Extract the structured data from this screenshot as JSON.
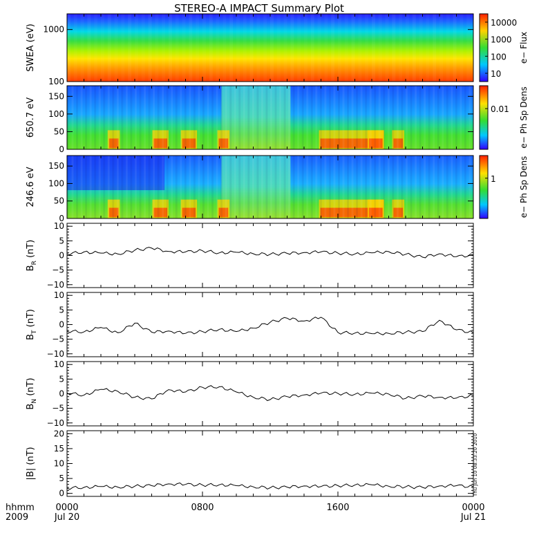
{
  "title": "STEREO-A IMPACT Summary Plot",
  "stamp": "Thu Jun 10 08:33:20 2010",
  "x_axis": {
    "row1_left": "hhmm",
    "row2_left": "2009",
    "tick_top": [
      "0000",
      "0800",
      "1600",
      "0000"
    ],
    "tick_bottom": [
      "Jul 20",
      "",
      "",
      "Jul 21"
    ]
  },
  "chart_data": [
    {
      "type": "heatmap",
      "ylabel": "SWEA (eV)",
      "yscale": "log",
      "yticks": [
        "1000",
        "100"
      ],
      "ylim": [
        100,
        2000
      ],
      "colorbar": {
        "label": "e− Flux",
        "ticks": [
          "10000",
          "1000",
          "100",
          "10"
        ],
        "scale": "log"
      }
    },
    {
      "type": "heatmap",
      "ylabel": "650.7 eV",
      "yticks": [
        "150",
        "100",
        "50",
        "0"
      ],
      "ylim": [
        0,
        180
      ],
      "colorbar": {
        "label": "e− Ph Sp Dens",
        "ticks": [
          "0.01"
        ],
        "scale": "log"
      }
    },
    {
      "type": "heatmap",
      "ylabel": "246.6 eV",
      "yticks": [
        "150",
        "100",
        "50",
        "0"
      ],
      "ylim": [
        0,
        180
      ],
      "colorbar": {
        "label": "e− Ph Sp Dens",
        "ticks": [
          "1"
        ],
        "scale": "log"
      }
    },
    {
      "type": "line",
      "ylabel": "B",
      "ylabel_sub": "R",
      "ylabel_unit": " (nT)",
      "yticks": [
        "10",
        "5",
        "0",
        "−5",
        "−10"
      ],
      "ylim": [
        -11,
        11
      ],
      "x": [
        0,
        1,
        2,
        3,
        4,
        5,
        6,
        7,
        8,
        9,
        10,
        11,
        12,
        13,
        14,
        15,
        16,
        17,
        18,
        19,
        20,
        21,
        22,
        23,
        24
      ],
      "values": [
        0.6,
        1.2,
        0.8,
        0.5,
        1.8,
        2.5,
        1.4,
        1.2,
        1.6,
        0.9,
        1.1,
        0.6,
        0.4,
        0.7,
        1.0,
        1.2,
        0.8,
        0.5,
        0.9,
        1.3,
        0.4,
        -0.6,
        0.6,
        -0.4,
        0.1
      ]
    },
    {
      "type": "line",
      "ylabel": "B",
      "ylabel_sub": "T",
      "ylabel_unit": " (nT)",
      "yticks": [
        "10",
        "5",
        "0",
        "−5",
        "−10"
      ],
      "ylim": [
        -11,
        11
      ],
      "x": [
        0,
        1,
        2,
        3,
        4,
        5,
        6,
        7,
        8,
        9,
        10,
        11,
        12,
        13,
        14,
        15,
        16,
        17,
        18,
        19,
        20,
        21,
        22,
        23,
        24
      ],
      "values": [
        -2.2,
        -2.5,
        -1.0,
        -2.8,
        0.5,
        -2.6,
        -2.2,
        -3.0,
        -2.4,
        -1.6,
        -2.4,
        -1.2,
        0.8,
        2.2,
        1.2,
        2.5,
        -2.7,
        -2.9,
        -3.1,
        -3.0,
        -2.6,
        -2.4,
        1.5,
        -1.8,
        -2.8
      ]
    },
    {
      "type": "line",
      "ylabel": "B",
      "ylabel_sub": "N",
      "ylabel_unit": " (nT)",
      "yticks": [
        "10",
        "5",
        "0",
        "−5",
        "−10"
      ],
      "ylim": [
        -11,
        11
      ],
      "x": [
        0,
        1,
        2,
        3,
        4,
        5,
        6,
        7,
        8,
        9,
        10,
        11,
        12,
        13,
        14,
        15,
        16,
        17,
        18,
        19,
        20,
        21,
        22,
        23,
        24
      ],
      "values": [
        0.3,
        -0.5,
        1.5,
        0.8,
        -1.2,
        -1.8,
        1.4,
        0.6,
        2.2,
        2.4,
        0.6,
        -1.2,
        -2.0,
        -1.0,
        -0.4,
        0.2,
        0.1,
        -0.2,
        0.2,
        -0.1,
        -1.6,
        -0.8,
        -1.2,
        -1.5,
        -0.6
      ]
    },
    {
      "type": "line",
      "ylabel": "|B| (nT)",
      "yticks": [
        "20",
        "15",
        "10",
        "5",
        "0"
      ],
      "ylim": [
        -1,
        21
      ],
      "x": [
        0,
        1,
        2,
        3,
        4,
        5,
        6,
        7,
        8,
        9,
        10,
        11,
        12,
        13,
        14,
        15,
        16,
        17,
        18,
        19,
        20,
        21,
        22,
        23,
        24
      ],
      "values": [
        1.8,
        2.0,
        2.3,
        2.1,
        2.4,
        2.6,
        3.2,
        3.0,
        2.8,
        2.9,
        2.6,
        2.2,
        1.9,
        2.1,
        2.5,
        2.3,
        2.6,
        2.8,
        2.9,
        2.4,
        2.2,
        2.0,
        2.5,
        2.6,
        2.2
      ]
    }
  ]
}
